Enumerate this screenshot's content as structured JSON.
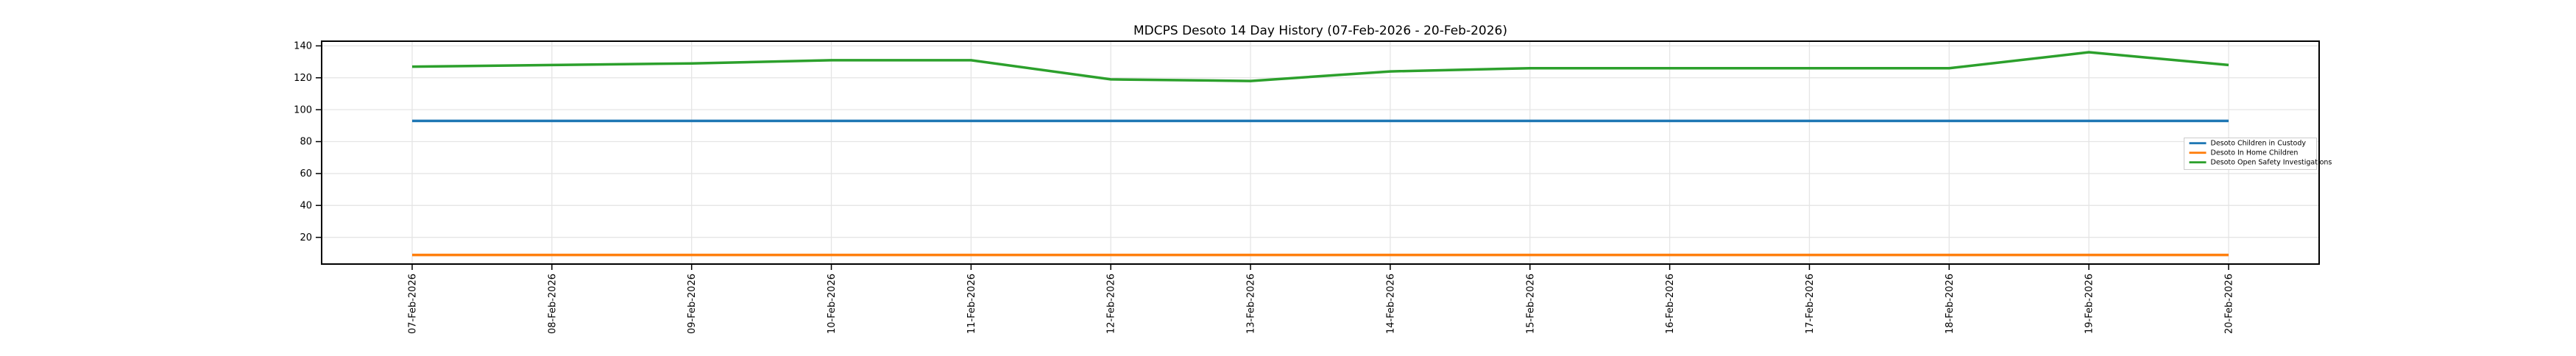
{
  "figure": {
    "title": "MDCPS Desoto 14 Day History (07-Feb-2026 - 20-Feb-2026)"
  },
  "chart_data": {
    "type": "line",
    "title": "MDCPS Desoto 14 Day History (07-Feb-2026 - 20-Feb-2026)",
    "xlabel": "",
    "ylabel": "",
    "categories": [
      "07-Feb-2026",
      "08-Feb-2026",
      "09-Feb-2026",
      "10-Feb-2026",
      "11-Feb-2026",
      "12-Feb-2026",
      "13-Feb-2026",
      "14-Feb-2026",
      "15-Feb-2026",
      "16-Feb-2026",
      "17-Feb-2026",
      "18-Feb-2026",
      "19-Feb-2026",
      "20-Feb-2026"
    ],
    "series": [
      {
        "name": "Desoto Children in Custody",
        "color": "#1f77b4",
        "values": [
          93,
          93,
          93,
          93,
          93,
          93,
          93,
          93,
          93,
          93,
          93,
          93,
          93,
          93
        ]
      },
      {
        "name": "Desoto In Home Children",
        "color": "#ff7f0e",
        "values": [
          9,
          9,
          9,
          9,
          9,
          9,
          9,
          9,
          9,
          9,
          9,
          9,
          9,
          9
        ]
      },
      {
        "name": "Desoto Open Safety Investigations",
        "color": "#2ca02c",
        "values": [
          127,
          128,
          129,
          131,
          131,
          119,
          118,
          124,
          126,
          126,
          126,
          126,
          136,
          128
        ]
      }
    ],
    "yticks": [
      20,
      40,
      60,
      80,
      100,
      120,
      140
    ],
    "ylim": [
      3,
      143
    ],
    "grid": true,
    "grid_color": "#e5e5e5",
    "axis_color": "#000000",
    "background": "#ffffff",
    "legend_position": "right",
    "legend_border_color": "#cccccc"
  }
}
